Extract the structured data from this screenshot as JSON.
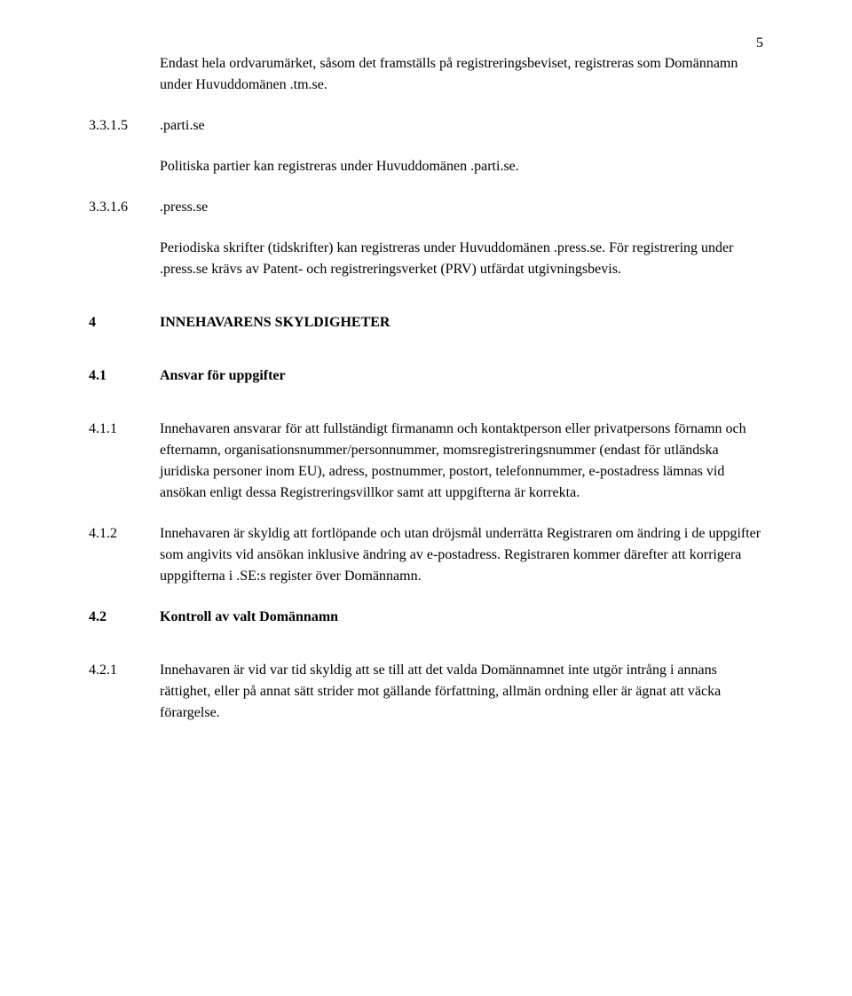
{
  "page_number": "5",
  "intro_para": "Endast hela ordvarumärket, såsom det framställs på registreringsbeviset, registreras som Domännamn under Huvuddomänen .tm.se.",
  "s315": {
    "num": "3.3.1.5",
    "label": ".parti.se",
    "body": "Politiska partier kan registreras under Huvuddomänen .parti.se."
  },
  "s316": {
    "num": "3.3.1.6",
    "label": ".press.se",
    "body": "Periodiska skrifter (tidskrifter) kan registreras under Huvuddomänen .press.se. För registrering under .press.se krävs av Patent- och registreringsverket (PRV) utfärdat utgivningsbevis."
  },
  "s4": {
    "num": "4",
    "title": "INNEHAVARENS SKYLDIGHETER"
  },
  "s41": {
    "num": "4.1",
    "title": "Ansvar för uppgifter"
  },
  "s411": {
    "num": "4.1.1",
    "body": "Innehavaren ansvarar för att fullständigt firmanamn och kontaktperson eller privatpersons förnamn och efternamn, organisationsnummer/personnummer, momsregistreringsnummer (endast för utländska juridiska personer inom EU), adress, postnummer, postort, telefonnummer, e-postadress lämnas vid ansökan enligt dessa Registreringsvillkor samt att uppgifterna är korrekta."
  },
  "s412": {
    "num": "4.1.2",
    "body": "Innehavaren är skyldig att fortlöpande och utan dröjsmål underrätta Registraren om ändring i de uppgifter som angivits vid ansökan inklusive ändring av e-postadress. Registraren kommer därefter att korrigera uppgifterna i .SE:s register över Domännamn."
  },
  "s42": {
    "num": "4.2",
    "title": "Kontroll av valt Domännamn"
  },
  "s421": {
    "num": "4.2.1",
    "body": "Innehavaren är vid var tid skyldig att se till att det valda Domännamnet inte utgör intrång i annans rättighet, eller på annat sätt strider mot gällande författning, allmän ordning eller är ägnat att väcka förargelse."
  }
}
